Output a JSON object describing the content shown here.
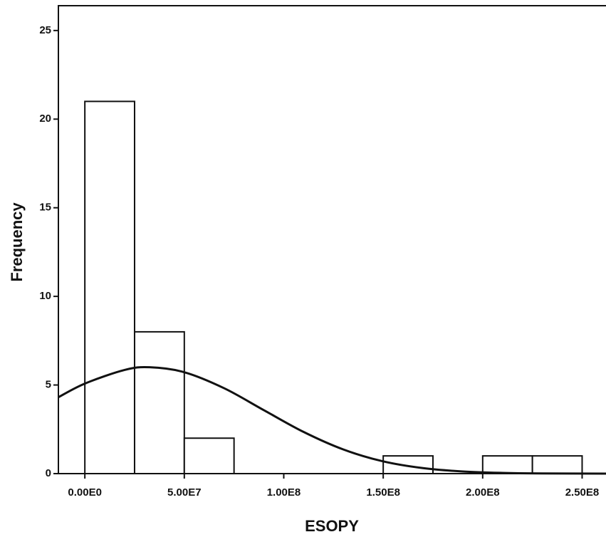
{
  "chart_data": {
    "type": "histogram",
    "x_label": "ESOPY",
    "y_label": "Frequency",
    "bins": [
      0,
      25000000,
      50000000,
      75000000,
      100000000,
      125000000,
      150000000,
      175000000,
      200000000,
      225000000,
      250000000
    ],
    "values": [
      21,
      8,
      2,
      0,
      0,
      0,
      1,
      0,
      1,
      1
    ],
    "color": "#ffffff",
    "edge_color": "#111111",
    "xlim": [
      -13300000,
      262000000
    ],
    "ylim": [
      0,
      26.4
    ],
    "xticks": [
      {
        "value": 0,
        "label": "0.00E0"
      },
      {
        "value": 50000000,
        "label": "5.00E7"
      },
      {
        "value": 100000000,
        "label": "1.00E8"
      },
      {
        "value": 150000000,
        "label": "1.50E8"
      },
      {
        "value": 200000000,
        "label": "2.00E8"
      },
      {
        "value": 250000000,
        "label": "2.50E8"
      }
    ],
    "yticks": [
      0,
      5,
      10,
      15,
      20,
      25
    ],
    "curve": {
      "x": [
        -13300000,
        0,
        20000000,
        32600000,
        50000000,
        70000000,
        90000000,
        110000000,
        130000000,
        150000000,
        170000000,
        190000000,
        210000000,
        230000000,
        262000000
      ],
      "y": [
        4.31,
        5.08,
        5.85,
        6,
        5.72,
        4.82,
        3.58,
        2.35,
        1.36,
        0.69,
        0.31,
        0.12,
        0.04,
        0.01,
        0
      ],
      "color": "#111111"
    }
  }
}
